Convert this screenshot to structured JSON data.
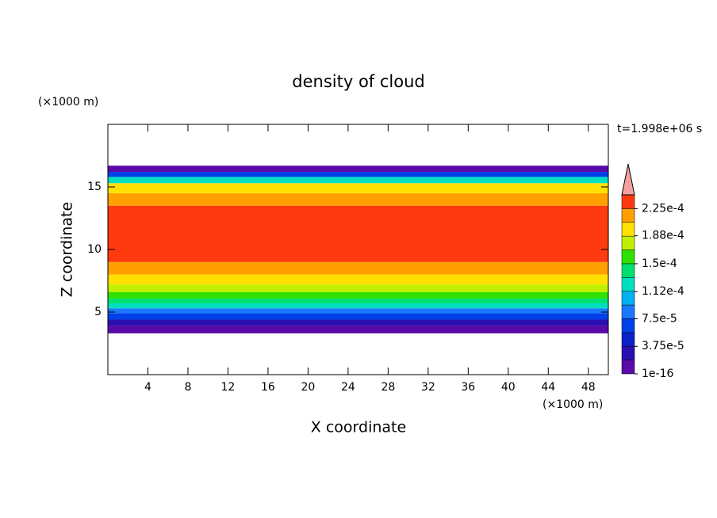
{
  "chart_data": {
    "type": "contour-profile",
    "title": "density of cloud",
    "time_label": "t=1.998e+06 s",
    "x_label": "X coordinate",
    "y_label": "Z coordinate",
    "x_unit": "(×1000 m)",
    "y_unit": "(×1000 m)",
    "xlim": [
      0,
      50
    ],
    "ylim": [
      0,
      20
    ],
    "xticks": [
      4,
      8,
      12,
      16,
      20,
      24,
      28,
      32,
      36,
      40,
      44,
      48
    ],
    "yticks": [
      5,
      10,
      15
    ],
    "z_edges": [
      3.3,
      3.9,
      4.4,
      4.9,
      5.3,
      5.7,
      6.1,
      6.6,
      7.2,
      8.0,
      9.0,
      13.5,
      14.5,
      15.3,
      15.8,
      16.2,
      16.7
    ],
    "values": [
      1e-05,
      3e-05,
      6e-05,
      9e-05,
      0.00012,
      0.00014,
      0.00016,
      0.00018,
      0.0002,
      0.00022,
      0.000235,
      0.00022,
      0.0002,
      0.00013,
      6e-05,
      1e-05
    ],
    "clim": [
      1e-16,
      0.00024375
    ],
    "colors": [
      "#5a0aa8",
      "#2a10b0",
      "#0a20c8",
      "#0040e8",
      "#1a78ff",
      "#00b0f0",
      "#00e0c0",
      "#00e070",
      "#30e000",
      "#c0f000",
      "#ffe000",
      "#ffa000",
      "#ff3a10"
    ],
    "extend_color": "#f4a0a0",
    "cticks": [
      1e-16,
      {
        "value": 3.75e-05,
        "label": "3.75e-5"
      },
      {
        "value": 7.5e-05,
        "label": "7.5e-5"
      },
      {
        "value": 0.000112,
        "label": "1.12e-4"
      },
      {
        "value": 0.00015,
        "label": "1.5e-4"
      },
      {
        "value": 0.000188,
        "label": "1.88e-4"
      },
      {
        "value": 0.000225,
        "label": "2.25e-4"
      }
    ]
  }
}
